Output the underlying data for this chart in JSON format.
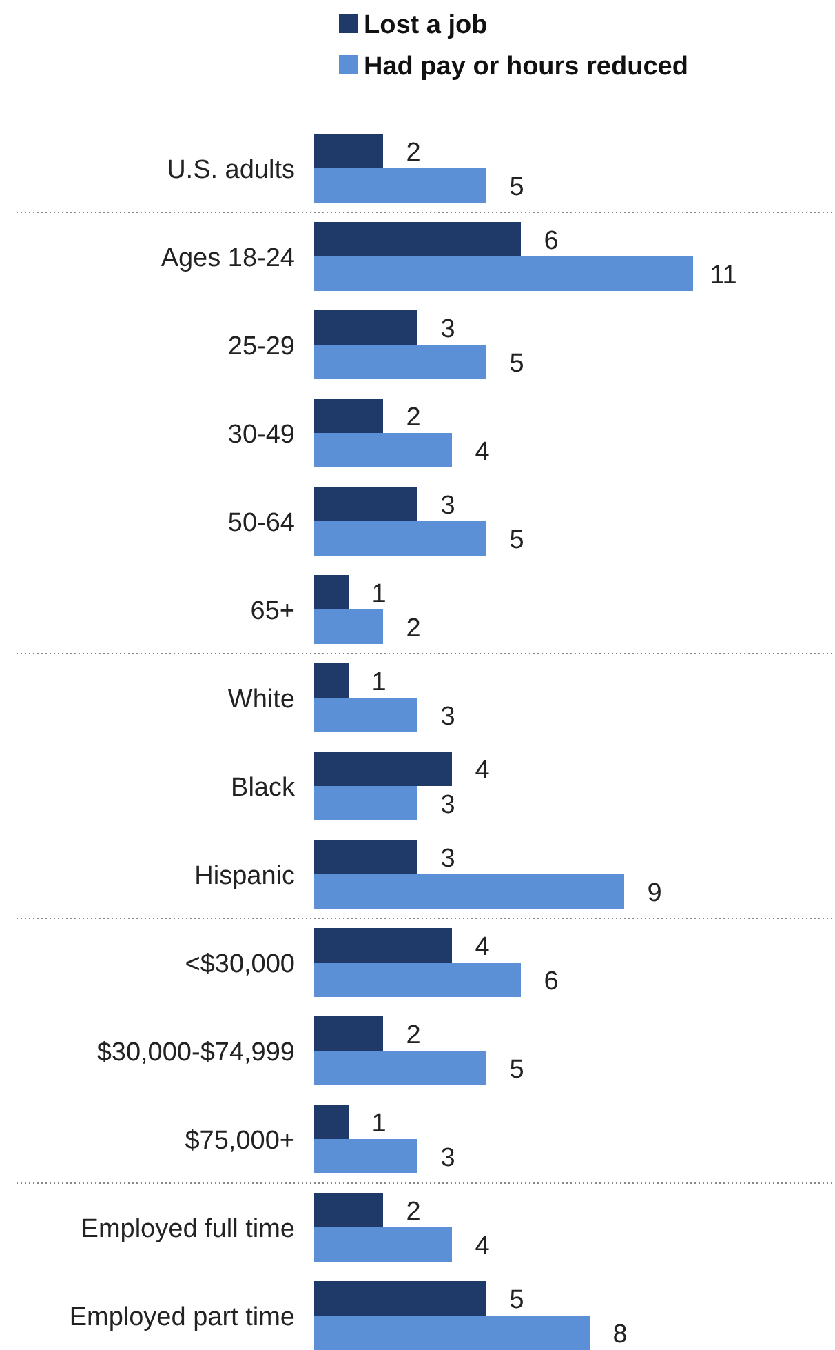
{
  "chart_data": {
    "type": "bar",
    "orientation": "horizontal",
    "categories": [
      "U.S. adults",
      "Ages 18-24",
      "25-29",
      "30-49",
      "50-64",
      "65+",
      "White",
      "Black",
      "Hispanic",
      "<$30,000",
      "$30,000-$74,999",
      "$75,000+",
      "Employed full time",
      "Employed part time"
    ],
    "series": [
      {
        "name": "Lost a job",
        "color": "#1f3a68",
        "values": [
          2,
          6,
          3,
          2,
          3,
          1,
          1,
          4,
          3,
          4,
          2,
          1,
          2,
          5
        ]
      },
      {
        "name": "Had pay or hours reduced",
        "color": "#5b8fd6",
        "values": [
          5,
          11,
          5,
          4,
          5,
          2,
          3,
          3,
          9,
          6,
          5,
          3,
          4,
          8
        ]
      }
    ],
    "xlim": [
      0,
      15
    ],
    "data_labels": true,
    "legend": "top",
    "tick_labels": "y"
  }
}
